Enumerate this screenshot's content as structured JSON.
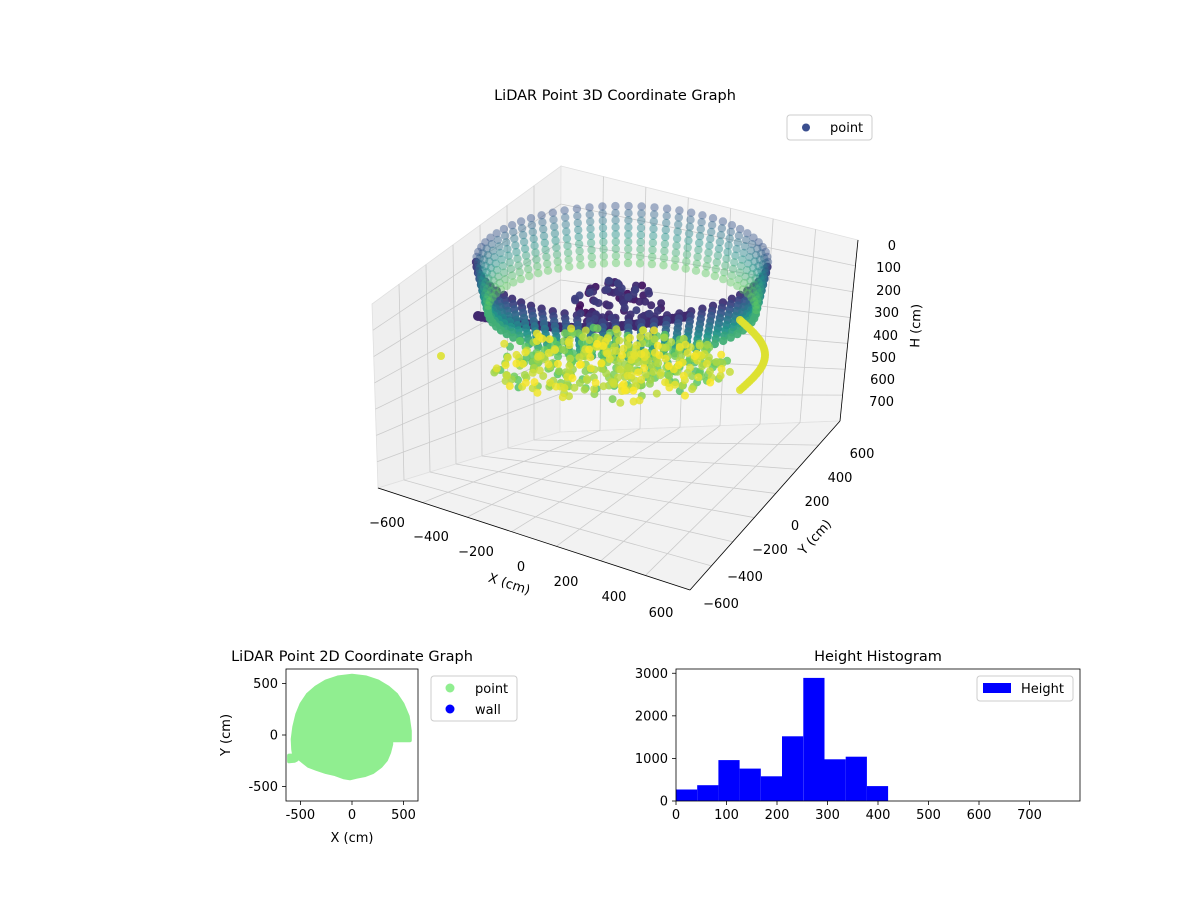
{
  "chart_data": [
    {
      "type": "scatter",
      "projection": "3d",
      "title": "LiDAR Point 3D Coordinate Graph",
      "xlabel": "X (cm)",
      "ylabel": "Y (cm)",
      "zlabel": "H (cm)",
      "xlim": [
        -650,
        650
      ],
      "ylim": [
        -650,
        650
      ],
      "zlim": [
        750,
        0
      ],
      "z_axis_inverted": true,
      "xticks": [
        "−600",
        "−400",
        "−200",
        "0",
        "200",
        "400",
        "600"
      ],
      "yticks": [
        "−600",
        "−400",
        "−200",
        "0",
        "200",
        "400",
        "600"
      ],
      "zticks": [
        "0",
        "100",
        "200",
        "300",
        "400",
        "500",
        "600",
        "700"
      ],
      "grid": true,
      "colormap": "viridis",
      "legend": {
        "placement": "top-right",
        "entries": [
          {
            "label": "point",
            "color": "#3b4f8f"
          }
        ]
      },
      "series": [
        {
          "name": "point",
          "shape": "dome",
          "radius_cm": 580,
          "height_range_cm": [
            0,
            480
          ]
        }
      ]
    },
    {
      "type": "scatter",
      "title": "LiDAR Point 2D Coordinate Graph",
      "xlabel": "X (cm)",
      "ylabel": "Y (cm)",
      "xlim": [
        -640,
        640
      ],
      "ylim": [
        -640,
        640
      ],
      "xticks": [
        -500,
        0,
        500
      ],
      "yticks": [
        -500,
        0,
        500
      ],
      "legend": {
        "placement": "outside-right",
        "entries": [
          {
            "label": "point",
            "color": "#90ee90"
          },
          {
            "label": "wall",
            "color": "#0000ff"
          }
        ]
      },
      "series": [
        {
          "name": "point",
          "color": "#90ee90",
          "outline_points": [
            [
              -610,
              -255
            ],
            [
              -560,
              -250
            ],
            [
              -540,
              -240
            ],
            [
              -520,
              -220
            ],
            [
              -470,
              -260
            ],
            [
              -420,
              -300
            ],
            [
              -340,
              -330
            ],
            [
              -250,
              -360
            ],
            [
              -160,
              -380
            ],
            [
              -80,
              -410
            ],
            [
              -20,
              -420
            ],
            [
              40,
              -405
            ],
            [
              120,
              -390
            ],
            [
              200,
              -360
            ],
            [
              280,
              -300
            ],
            [
              330,
              -240
            ],
            [
              360,
              -170
            ],
            [
              380,
              -90
            ],
            [
              380,
              -50
            ],
            [
              480,
              -50
            ],
            [
              560,
              -50
            ],
            [
              560,
              40
            ],
            [
              540,
              180
            ],
            [
              490,
              300
            ],
            [
              430,
              390
            ],
            [
              350,
              460
            ],
            [
              250,
              520
            ],
            [
              130,
              560
            ],
            [
              0,
              575
            ],
            [
              -130,
              560
            ],
            [
              -250,
              520
            ],
            [
              -350,
              460
            ],
            [
              -430,
              390
            ],
            [
              -490,
              300
            ],
            [
              -530,
              200
            ],
            [
              -560,
              80
            ],
            [
              -575,
              -40
            ],
            [
              -570,
              -140
            ],
            [
              -560,
              -200
            ],
            [
              -610,
              -200
            ]
          ]
        },
        {
          "name": "wall",
          "color": "#0000ff",
          "points": []
        }
      ]
    },
    {
      "type": "bar",
      "subtype": "histogram",
      "title": "Height Histogram",
      "xlim": [
        0,
        800
      ],
      "ylim": [
        0,
        3100
      ],
      "xticks": [
        0,
        100,
        200,
        300,
        400,
        500,
        600,
        700
      ],
      "yticks": [
        0,
        1000,
        2000,
        3000
      ],
      "bin_edges": [
        0,
        42,
        84,
        126,
        168,
        210,
        252,
        294,
        336,
        378,
        420
      ],
      "values": [
        270,
        370,
        960,
        760,
        580,
        1520,
        2890,
        980,
        1040,
        350
      ],
      "color": "#0000ff",
      "legend": {
        "placement": "top-right",
        "entries": [
          {
            "label": "Height",
            "color": "#0000ff"
          }
        ]
      },
      "series": [
        {
          "name": "Height",
          "values": [
            270,
            370,
            960,
            760,
            580,
            1520,
            2890,
            980,
            1040,
            350
          ]
        }
      ]
    }
  ]
}
